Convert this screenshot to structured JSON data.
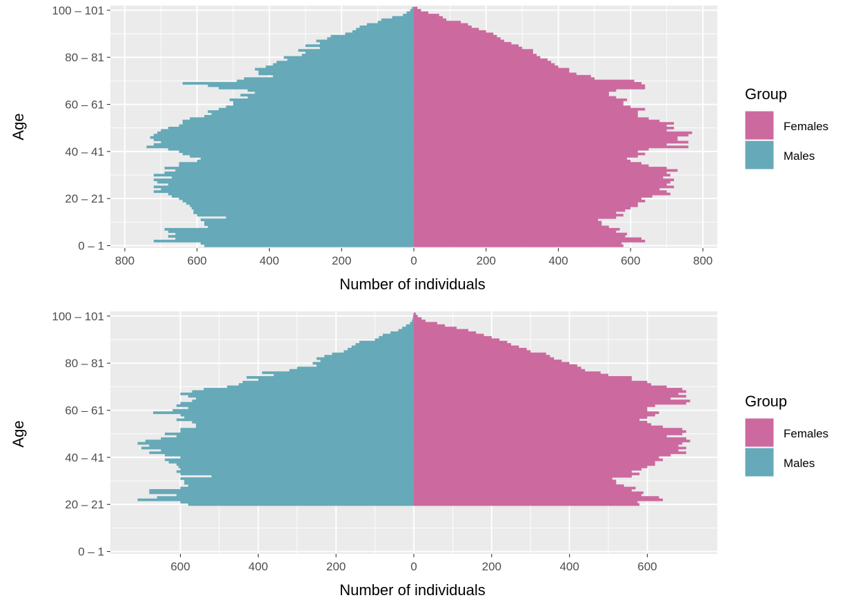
{
  "colors": {
    "Females": "#CC6A9F",
    "Males": "#66A9B8",
    "panel": "#EBEBEB",
    "grid": "#FFFFFF"
  },
  "chart_data": [
    {
      "type": "bar",
      "orientation": "horizontal",
      "xlabel": "Number of individuals",
      "ylabel": "Age",
      "xlim": [
        -840,
        840
      ],
      "ylim": [
        -1,
        102
      ],
      "grid": true,
      "legend": {
        "title": "Group",
        "position": "right",
        "entries": [
          "Females",
          "Males"
        ]
      },
      "x_ticks": [
        {
          "v": -800,
          "label": "800"
        },
        {
          "v": -600,
          "label": "600"
        },
        {
          "v": -400,
          "label": "400"
        },
        {
          "v": -200,
          "label": "200"
        },
        {
          "v": 0,
          "label": "0"
        },
        {
          "v": 200,
          "label": "200"
        },
        {
          "v": 400,
          "label": "400"
        },
        {
          "v": 600,
          "label": "600"
        },
        {
          "v": 800,
          "label": "800"
        }
      ],
      "y_ticks": [
        {
          "v": 0,
          "label": "0 – 1"
        },
        {
          "v": 20,
          "label": "20 – 21"
        },
        {
          "v": 40,
          "label": "40 – 41"
        },
        {
          "v": 60,
          "label": "60 – 61"
        },
        {
          "v": 80,
          "label": "80 – 81"
        },
        {
          "v": 100,
          "label": "100 – 101"
        }
      ],
      "age": [
        0,
        1,
        2,
        3,
        4,
        5,
        6,
        7,
        8,
        9,
        10,
        11,
        12,
        13,
        14,
        15,
        16,
        17,
        18,
        19,
        20,
        21,
        22,
        23,
        24,
        25,
        26,
        27,
        28,
        29,
        30,
        31,
        32,
        33,
        34,
        35,
        36,
        37,
        38,
        39,
        40,
        41,
        42,
        43,
        44,
        45,
        46,
        47,
        48,
        49,
        50,
        51,
        52,
        53,
        54,
        55,
        56,
        57,
        58,
        59,
        60,
        61,
        62,
        63,
        64,
        65,
        66,
        67,
        68,
        69,
        70,
        71,
        72,
        73,
        74,
        75,
        76,
        77,
        78,
        79,
        80,
        81,
        82,
        83,
        84,
        85,
        86,
        87,
        88,
        89,
        90,
        91,
        92,
        93,
        94,
        95,
        96,
        97,
        98,
        99,
        100,
        101
      ],
      "series": [
        {
          "name": "Females",
          "values": [
            580,
            575,
            640,
            630,
            585,
            590,
            560,
            570,
            540,
            520,
            520,
            510,
            560,
            580,
            560,
            585,
            600,
            620,
            620,
            640,
            630,
            660,
            710,
            700,
            680,
            720,
            700,
            710,
            720,
            690,
            710,
            700,
            730,
            700,
            650,
            630,
            600,
            590,
            620,
            640,
            620,
            650,
            760,
            700,
            760,
            730,
            730,
            760,
            770,
            700,
            720,
            700,
            720,
            680,
            650,
            620,
            620,
            620,
            640,
            600,
            580,
            580,
            590,
            560,
            540,
            540,
            560,
            640,
            640,
            630,
            610,
            500,
            490,
            450,
            430,
            430,
            400,
            390,
            380,
            370,
            350,
            340,
            330,
            330,
            300,
            290,
            270,
            250,
            240,
            230,
            220,
            200,
            180,
            160,
            150,
            130,
            90,
            80,
            70,
            40,
            20,
            10
          ]
        },
        {
          "name": "Males",
          "values": [
            580,
            590,
            720,
            660,
            680,
            660,
            680,
            690,
            570,
            580,
            580,
            590,
            520,
            600,
            610,
            610,
            615,
            620,
            630,
            640,
            650,
            670,
            680,
            720,
            700,
            720,
            680,
            710,
            720,
            670,
            720,
            690,
            660,
            690,
            650,
            650,
            600,
            590,
            620,
            640,
            650,
            680,
            740,
            720,
            700,
            720,
            730,
            720,
            710,
            700,
            680,
            650,
            640,
            640,
            620,
            580,
            560,
            570,
            540,
            520,
            500,
            500,
            510,
            460,
            480,
            440,
            460,
            540,
            570,
            640,
            490,
            470,
            390,
            430,
            430,
            440,
            410,
            390,
            380,
            350,
            360,
            310,
            300,
            320,
            260,
            300,
            260,
            270,
            240,
            230,
            190,
            170,
            160,
            150,
            130,
            100,
            90,
            60,
            30,
            20,
            10,
            5
          ]
        }
      ]
    },
    {
      "type": "bar",
      "orientation": "horizontal",
      "xlabel": "Number of individuals",
      "ylabel": "Age",
      "xlim": [
        -780,
        780
      ],
      "ylim": [
        -1,
        102
      ],
      "grid": true,
      "legend": {
        "title": "Group",
        "position": "right",
        "entries": [
          "Females",
          "Males"
        ]
      },
      "x_ticks": [
        {
          "v": -600,
          "label": "600"
        },
        {
          "v": -400,
          "label": "400"
        },
        {
          "v": -200,
          "label": "200"
        },
        {
          "v": 0,
          "label": "0"
        },
        {
          "v": 200,
          "label": "200"
        },
        {
          "v": 400,
          "label": "400"
        },
        {
          "v": 600,
          "label": "600"
        }
      ],
      "y_ticks": [
        {
          "v": 0,
          "label": "0 – 1"
        },
        {
          "v": 20,
          "label": "20 – 21"
        },
        {
          "v": 40,
          "label": "40 – 41"
        },
        {
          "v": 60,
          "label": "60 – 61"
        },
        {
          "v": 80,
          "label": "80 – 81"
        },
        {
          "v": 100,
          "label": "100 – 101"
        }
      ],
      "age": [
        20,
        21,
        22,
        23,
        24,
        25,
        26,
        27,
        28,
        29,
        30,
        31,
        32,
        33,
        34,
        35,
        36,
        37,
        38,
        39,
        40,
        41,
        42,
        43,
        44,
        45,
        46,
        47,
        48,
        49,
        50,
        51,
        52,
        53,
        54,
        55,
        56,
        57,
        58,
        59,
        60,
        61,
        62,
        63,
        64,
        65,
        66,
        67,
        68,
        69,
        70,
        71,
        72,
        73,
        74,
        75,
        76,
        77,
        78,
        79,
        80,
        81,
        82,
        83,
        84,
        85,
        86,
        87,
        88,
        89,
        90,
        91,
        92,
        93,
        94,
        95,
        96,
        97,
        98,
        99,
        100,
        101
      ],
      "series": [
        {
          "name": "Females",
          "values": [
            580,
            575,
            640,
            630,
            585,
            590,
            560,
            570,
            540,
            520,
            520,
            510,
            560,
            580,
            560,
            585,
            600,
            620,
            620,
            640,
            630,
            660,
            700,
            680,
            700,
            680,
            690,
            710,
            700,
            650,
            690,
            700,
            690,
            640,
            610,
            600,
            580,
            600,
            620,
            630,
            600,
            600,
            620,
            700,
            710,
            660,
            700,
            680,
            700,
            690,
            650,
            610,
            600,
            560,
            560,
            500,
            480,
            440,
            430,
            420,
            400,
            380,
            360,
            350,
            340,
            300,
            290,
            270,
            250,
            240,
            220,
            200,
            180,
            160,
            140,
            110,
            80,
            60,
            30,
            20,
            10,
            5
          ]
        },
        {
          "name": "Males",
          "values": [
            580,
            600,
            710,
            660,
            610,
            680,
            680,
            600,
            580,
            590,
            590,
            600,
            520,
            600,
            610,
            600,
            605,
            610,
            630,
            640,
            600,
            640,
            680,
            650,
            700,
            680,
            710,
            690,
            650,
            610,
            640,
            600,
            600,
            560,
            560,
            570,
            610,
            590,
            600,
            670,
            620,
            580,
            610,
            600,
            570,
            560,
            580,
            600,
            570,
            540,
            480,
            450,
            440,
            400,
            430,
            360,
            390,
            320,
            300,
            250,
            260,
            240,
            250,
            230,
            210,
            180,
            170,
            160,
            150,
            140,
            100,
            90,
            80,
            60,
            40,
            30,
            20,
            10,
            5,
            3,
            2,
            1
          ]
        }
      ]
    }
  ]
}
